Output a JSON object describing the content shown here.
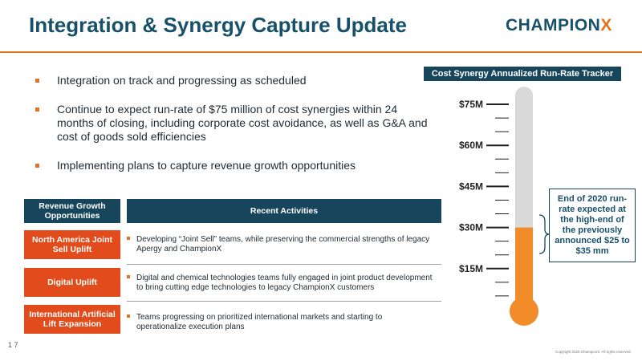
{
  "header": {
    "title": "Integration & Synergy Capture Update",
    "logo_main": "CHAMPION",
    "logo_x": "X"
  },
  "bullets": [
    "Integration on track and progressing as scheduled",
    "Continue to expect run-rate of $75 million of cost synergies within 24 months of closing, including corporate cost avoidance, as well as G&A and cost of goods sold efficiencies",
    "Implementing plans to capture revenue growth opportunities"
  ],
  "table": {
    "col_left_header": "Revenue Growth Opportunities",
    "col_right_header": "Recent Activities",
    "rows": [
      {
        "label": "North America Joint Sell Uplift",
        "text": "Developing “Joint Sell” teams, while preserving the commercial strengths of legacy Apergy and ChampionX"
      },
      {
        "label": "Digital Uplift",
        "text": "Digital and chemical technologies teams fully engaged in joint product development to bring cutting edge technologies to legacy ChampionX customers"
      },
      {
        "label": "International Artificial Lift Expansion",
        "text": "Teams progressing on prioritized international markets and starting to operationalize execution plans"
      }
    ]
  },
  "chart_data": {
    "type": "bar",
    "title": "Cost Synergy Annualized Run-Rate Tracker",
    "categories": [
      ""
    ],
    "values": [
      30
    ],
    "ylim": [
      0,
      75
    ],
    "ticks": [
      {
        "value": 15,
        "label": "$15M"
      },
      {
        "value": 30,
        "label": "$30M"
      },
      {
        "value": 45,
        "label": "$45M"
      },
      {
        "value": 60,
        "label": "$60M"
      },
      {
        "value": 75,
        "label": "$75M"
      }
    ],
    "annotation": "End of 2020 run-rate expected at the high-end of the previously announced $25 to $35 mm",
    "colors": {
      "fill": "#f28c28",
      "empty": "#d9d9d9",
      "ticks": "#1f1f1f"
    }
  },
  "footer": {
    "page_number": "1 7",
    "copyright": "Copyright 2020 ChampionX. All rights reserved."
  }
}
